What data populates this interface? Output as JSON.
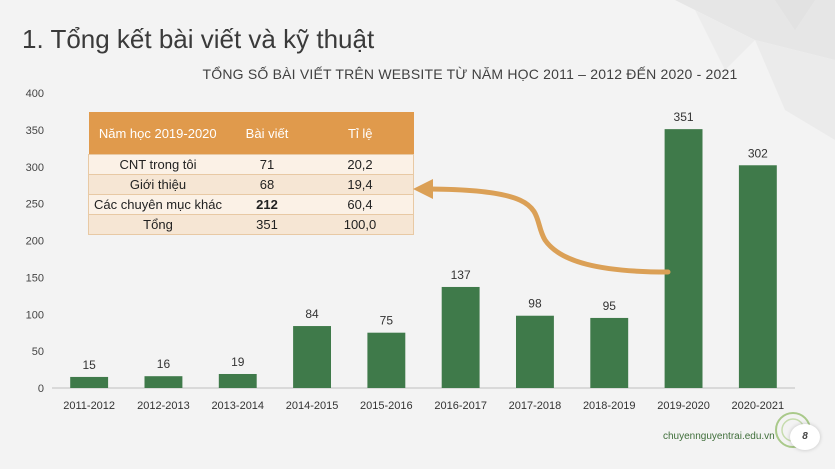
{
  "slide": {
    "title": "1. Tổng kết bài viết và kỹ thuật",
    "website": "chuyennguyentrai.edu.vn",
    "page_number": "8"
  },
  "table": {
    "headers": [
      "Năm học 2019-2020",
      "Bài viết",
      "Tỉ lệ"
    ],
    "rows": [
      [
        "CNT trong tôi",
        "71",
        "20,2"
      ],
      [
        "Giới thiệu",
        "68",
        "19,4"
      ],
      [
        "Các chuyên mục khác",
        "212",
        "60,4"
      ],
      [
        "Tổng",
        "351",
        "100,0"
      ]
    ]
  },
  "colors": {
    "bar": "#3f7a4a",
    "table_header": "#e09a4c",
    "arrow": "#dba056"
  },
  "chart_data": {
    "type": "bar",
    "title": "TỔNG SỐ BÀI VIẾT TRÊN WEBSITE TỪ NĂM HỌC 2011 – 2012 ĐẾN 2020 - 2021",
    "categories": [
      "2011-2012",
      "2012-2013",
      "2013-2014",
      "2014-2015",
      "2015-2016",
      "2016-2017",
      "2017-2018",
      "2018-2019",
      "2019-2020",
      "2020-2021"
    ],
    "values": [
      15,
      16,
      19,
      84,
      75,
      137,
      98,
      95,
      351,
      302
    ],
    "yticks": [
      0,
      50,
      100,
      150,
      200,
      250,
      300,
      350,
      400
    ],
    "ylim": [
      0,
      400
    ],
    "xlabel": "",
    "ylabel": "",
    "grid": false,
    "data_labels": true
  }
}
